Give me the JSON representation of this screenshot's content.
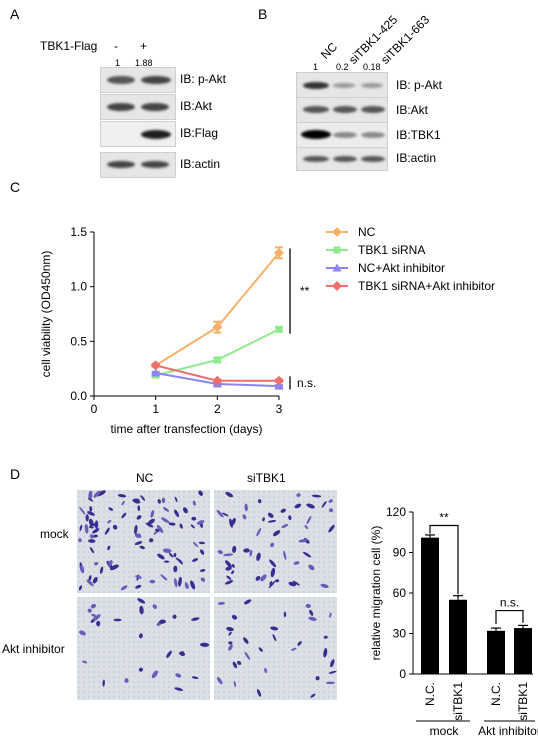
{
  "panelA": {
    "letter": "A",
    "treatment_label": "TBK1-Flag",
    "lane_signs": [
      "-",
      "+"
    ],
    "quant": [
      "1",
      "1.88"
    ],
    "blots": [
      "IB: p-Akt",
      "IB:Akt",
      "IB:Flag",
      "IB:actin"
    ]
  },
  "panelB": {
    "letter": "B",
    "lanes": [
      "NC",
      "siTBK1-425",
      "siTBK1-663"
    ],
    "quant": [
      "1",
      "0.2",
      "0.18"
    ],
    "blots": [
      "IB: p-Akt",
      "IB:Akt",
      "IB:TBK1",
      "IB:actin"
    ]
  },
  "panelC": {
    "letter": "C",
    "significance": [
      "**",
      "n.s."
    ]
  },
  "panelD": {
    "letter": "D",
    "col_labels": [
      "NC",
      "siTBK1"
    ],
    "row_labels": [
      "mock",
      "Akt inhibitor"
    ],
    "significance": [
      "**",
      "n.s."
    ],
    "group_labels": [
      "mock",
      "Akt inhibitor"
    ]
  },
  "chart_data": [
    {
      "type": "line",
      "x": [
        1,
        2,
        3
      ],
      "xlabel": "time after transfection (days)",
      "ylabel": "cell viability (OD450nm)",
      "xlim": [
        0,
        3
      ],
      "ylim": [
        0,
        1.5
      ],
      "xticks": [
        "0",
        "1",
        "2",
        "3"
      ],
      "yticks": [
        "0.0",
        "0.5",
        "1.0",
        "1.5"
      ],
      "legend_position": "top-right",
      "series": [
        {
          "name": "NC",
          "values": [
            0.28,
            0.63,
            1.31
          ],
          "errors": [
            0.01,
            0.05,
            0.05
          ],
          "color": "#f5b26b",
          "marker": "diamond"
        },
        {
          "name": "TBK1 siRNA",
          "values": [
            0.19,
            0.33,
            0.61
          ],
          "errors": [
            0.01,
            0.02,
            0.02
          ],
          "color": "#8fea8f",
          "marker": "square"
        },
        {
          "name": "NC+Akt inhibitor",
          "values": [
            0.21,
            0.11,
            0.09
          ],
          "errors": [
            0.01,
            0.01,
            0.01
          ],
          "color": "#8c84ef",
          "marker": "triangle"
        },
        {
          "name": "TBK1 siRNA+Akt inhibitor",
          "values": [
            0.28,
            0.14,
            0.14
          ],
          "errors": [
            0.01,
            0.01,
            0.01
          ],
          "color": "#ef6f6f",
          "marker": "diamond"
        }
      ]
    },
    {
      "type": "bar",
      "categories": [
        "N.C.",
        "siTBK1",
        "N.C.",
        "siTBK1"
      ],
      "values": [
        101,
        55,
        32,
        34
      ],
      "errors": [
        2,
        3,
        2,
        2
      ],
      "ylabel": "relative migration cell (%)",
      "ylim": [
        0,
        120
      ],
      "yticks": [
        "0",
        "30",
        "60",
        "90",
        "120"
      ],
      "bar_color": "#000000"
    }
  ]
}
